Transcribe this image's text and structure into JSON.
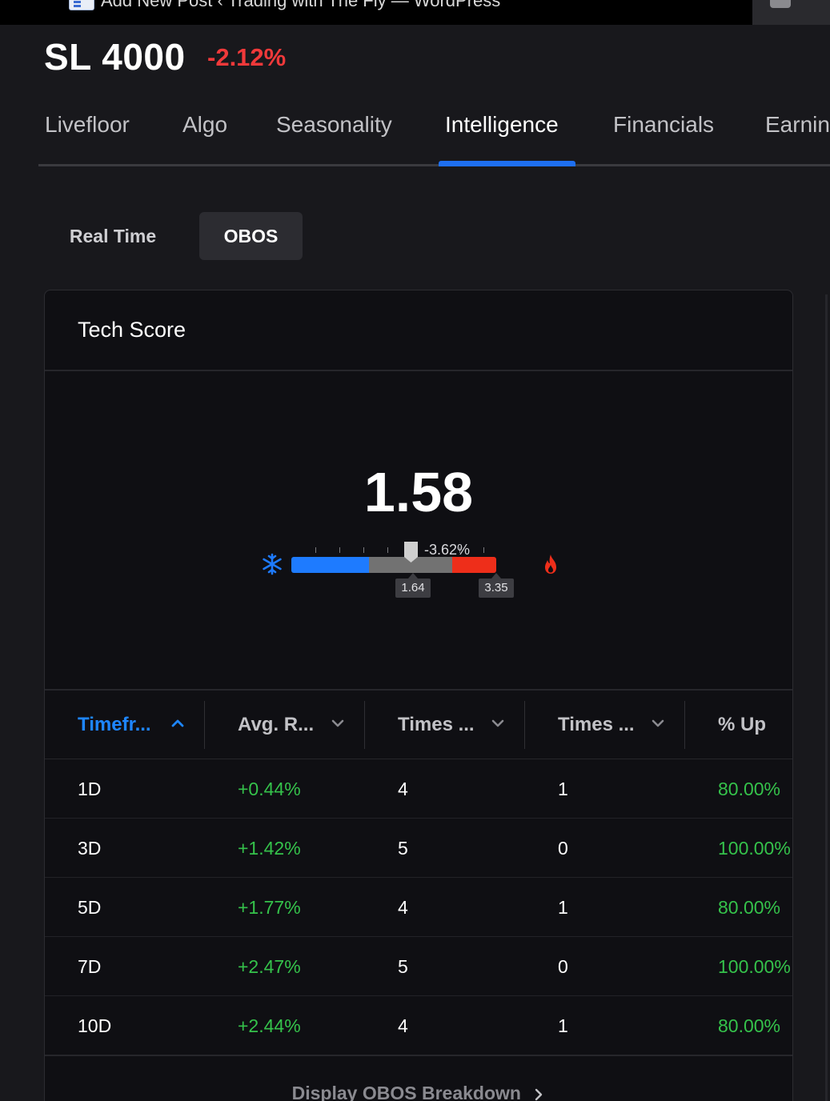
{
  "browser": {
    "title": "Add New Post ‹ Trading with The Fly — WordPress"
  },
  "header": {
    "ticker": "SL 4000",
    "change": "-2.12%"
  },
  "tabs": [
    {
      "label": "Livefloor"
    },
    {
      "label": "Algo"
    },
    {
      "label": "Seasonality"
    },
    {
      "label": "Intelligence"
    },
    {
      "label": "Financials"
    },
    {
      "label": "Earnin"
    }
  ],
  "active_tab": "Intelligence",
  "modes": {
    "realtime": "Real Time",
    "obos": "OBOS",
    "active": "OBOS"
  },
  "card": {
    "title": "Tech Score",
    "score": "1.58",
    "gauge": {
      "pointer_label": "-3.62%",
      "threshold_low": "1.64",
      "threshold_high": "3.35"
    }
  },
  "table": {
    "headers": [
      "Timefr...",
      "Avg. R...",
      "Times ...",
      "Times ...",
      "% Up"
    ],
    "rows": [
      {
        "timeframe": "1D",
        "avg": "+0.44%",
        "t1": "4",
        "t2": "1",
        "up": "80.00%"
      },
      {
        "timeframe": "3D",
        "avg": "+1.42%",
        "t1": "5",
        "t2": "0",
        "up": "100.00%"
      },
      {
        "timeframe": "5D",
        "avg": "+1.77%",
        "t1": "4",
        "t2": "1",
        "up": "80.00%"
      },
      {
        "timeframe": "7D",
        "avg": "+2.47%",
        "t1": "5",
        "t2": "0",
        "up": "100.00%"
      },
      {
        "timeframe": "10D",
        "avg": "+2.44%",
        "t1": "4",
        "t2": "1",
        "up": "80.00%"
      }
    ]
  },
  "footer": {
    "breakdown_label": "Display OBOS Breakdown"
  },
  "colors": {
    "negative": "#f0393a",
    "positive": "#35c24b",
    "accent": "#1e6ff1"
  }
}
